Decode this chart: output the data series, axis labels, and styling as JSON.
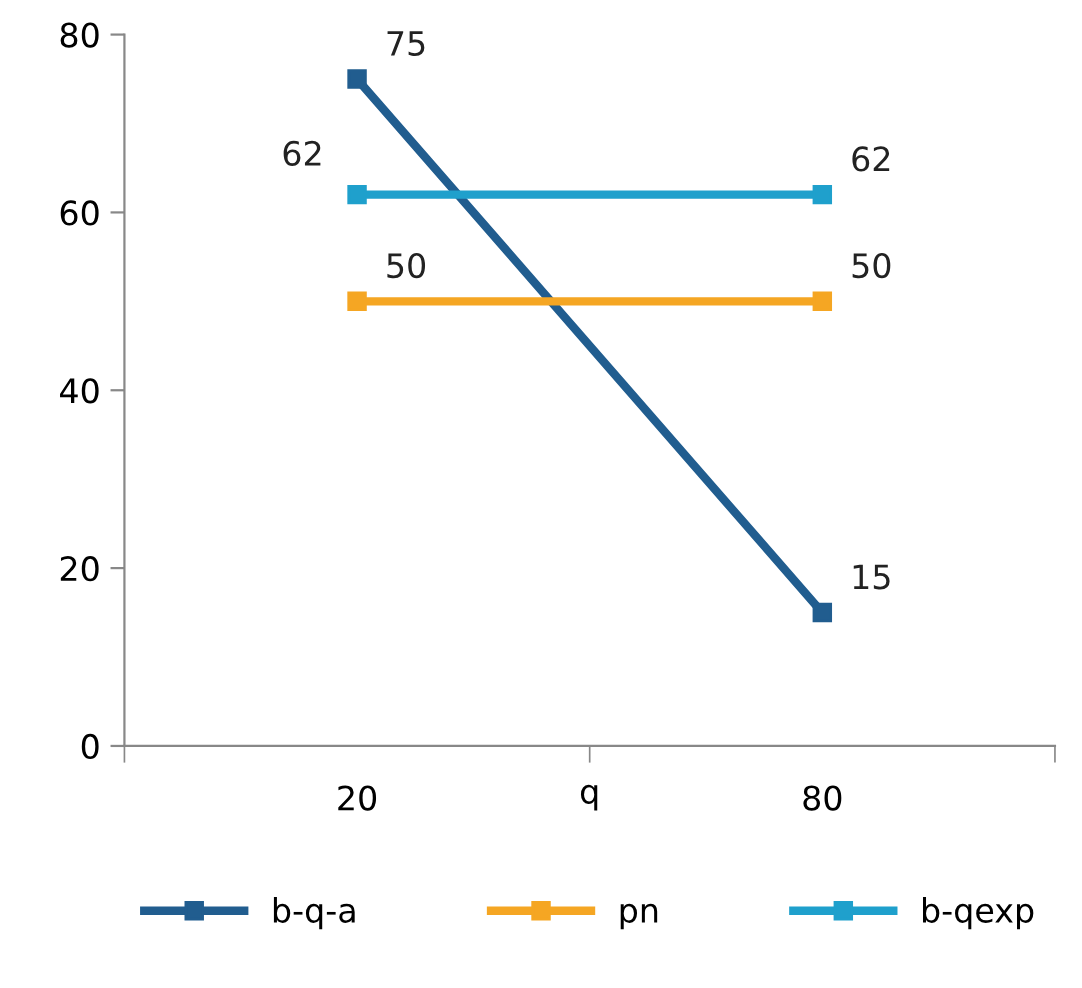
{
  "chart_data": {
    "type": "line",
    "xlabel": "q",
    "categories": [
      "20",
      "80"
    ],
    "series": [
      {
        "name": "b-q-a",
        "color": "#215d8f",
        "values": [
          75,
          15
        ]
      },
      {
        "name": "pn",
        "color": "#f5a623",
        "values": [
          50,
          50
        ]
      },
      {
        "name": "b-qexp",
        "color": "#1fa0cc",
        "values": [
          62,
          62
        ]
      }
    ],
    "ylim": [
      0,
      80
    ],
    "yticks": [
      0,
      20,
      40,
      60,
      80
    ],
    "grid": false,
    "legend": "bottom",
    "marker": "square",
    "line_style": "solid",
    "data_labels": true
  }
}
